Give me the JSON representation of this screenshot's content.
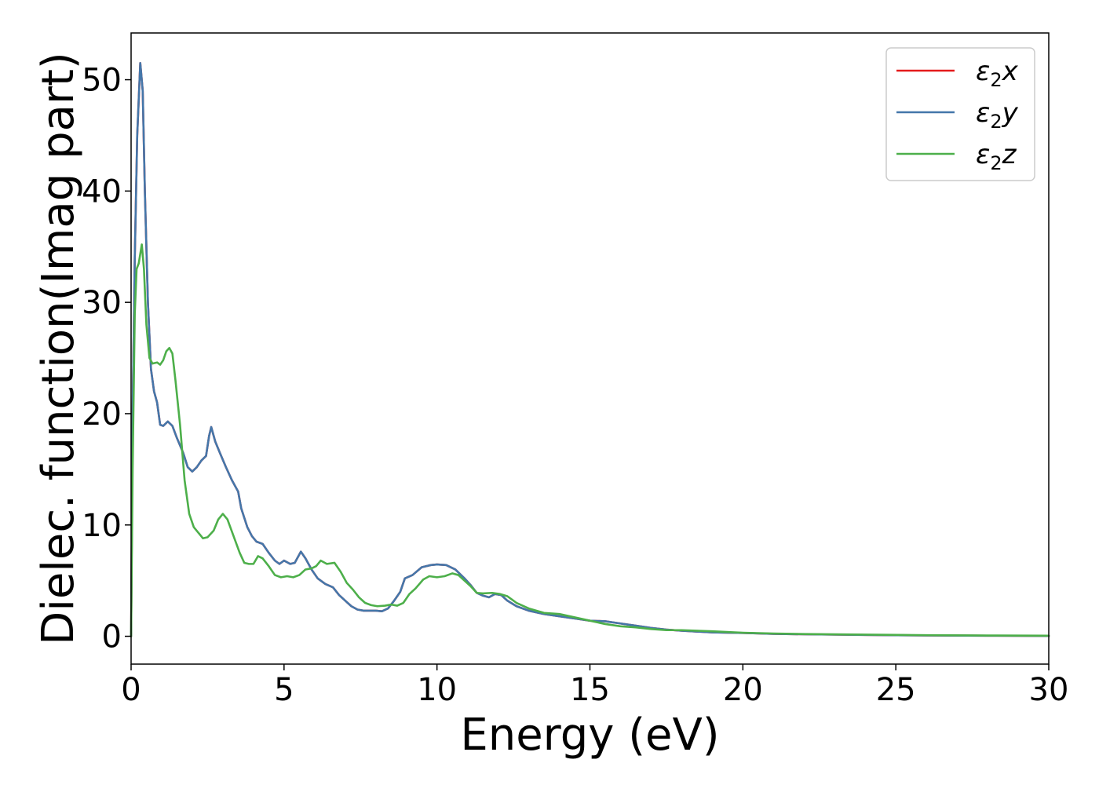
{
  "chart_data": {
    "type": "line",
    "title": "",
    "xlabel": "Energy (eV)",
    "ylabel": "Dielec. function(Imag part)",
    "xlim": [
      0,
      30
    ],
    "ylim": [
      -2.5,
      54.2
    ],
    "xticks": [
      0,
      5,
      10,
      15,
      20,
      25,
      30
    ],
    "yticks": [
      0,
      10,
      20,
      30,
      40,
      50
    ],
    "grid": false,
    "legend_position": "top-right",
    "series": [
      {
        "name": "ε2x",
        "legend_base": "ε",
        "legend_sub": "2",
        "legend_tail": "x",
        "color": "#e41a1c",
        "points": [
          [
            0,
            0
          ],
          [
            0.05,
            20
          ],
          [
            0.12,
            34
          ],
          [
            0.2,
            45
          ],
          [
            0.3,
            51.5
          ],
          [
            0.38,
            49
          ],
          [
            0.45,
            40
          ],
          [
            0.55,
            30
          ],
          [
            0.65,
            24
          ],
          [
            0.75,
            22
          ],
          [
            0.85,
            21
          ],
          [
            0.95,
            19
          ],
          [
            1.05,
            18.9
          ],
          [
            1.2,
            19.3
          ],
          [
            1.35,
            18.9
          ],
          [
            1.5,
            17.8
          ],
          [
            1.7,
            16.5
          ],
          [
            1.85,
            15.2
          ],
          [
            2.0,
            14.8
          ],
          [
            2.15,
            15.2
          ],
          [
            2.3,
            15.8
          ],
          [
            2.45,
            16.2
          ],
          [
            2.55,
            18
          ],
          [
            2.62,
            18.8
          ],
          [
            2.75,
            17.5
          ],
          [
            2.9,
            16.5
          ],
          [
            3.1,
            15.2
          ],
          [
            3.3,
            14
          ],
          [
            3.5,
            13
          ],
          [
            3.6,
            11.5
          ],
          [
            3.8,
            9.8
          ],
          [
            3.95,
            9
          ],
          [
            4.1,
            8.5
          ],
          [
            4.3,
            8.3
          ],
          [
            4.5,
            7.5
          ],
          [
            4.7,
            6.8
          ],
          [
            4.85,
            6.5
          ],
          [
            5.0,
            6.8
          ],
          [
            5.2,
            6.5
          ],
          [
            5.35,
            6.6
          ],
          [
            5.55,
            7.6
          ],
          [
            5.7,
            7
          ],
          [
            5.9,
            6
          ],
          [
            6.1,
            5.2
          ],
          [
            6.35,
            4.7
          ],
          [
            6.6,
            4.4
          ],
          [
            6.8,
            3.7
          ],
          [
            7.0,
            3.2
          ],
          [
            7.2,
            2.7
          ],
          [
            7.4,
            2.4
          ],
          [
            7.6,
            2.3
          ],
          [
            7.8,
            2.3
          ],
          [
            8.0,
            2.3
          ],
          [
            8.2,
            2.25
          ],
          [
            8.4,
            2.5
          ],
          [
            8.6,
            3.2
          ],
          [
            8.8,
            4
          ],
          [
            8.95,
            5.2
          ],
          [
            9.2,
            5.5
          ],
          [
            9.5,
            6.2
          ],
          [
            9.8,
            6.4
          ],
          [
            10.0,
            6.45
          ],
          [
            10.3,
            6.4
          ],
          [
            10.6,
            6
          ],
          [
            10.9,
            5.2
          ],
          [
            11.1,
            4.6
          ],
          [
            11.3,
            3.9
          ],
          [
            11.5,
            3.65
          ],
          [
            11.7,
            3.5
          ],
          [
            11.9,
            3.8
          ],
          [
            12.1,
            3.7
          ],
          [
            12.3,
            3.2
          ],
          [
            12.6,
            2.7
          ],
          [
            13.0,
            2.3
          ],
          [
            13.5,
            2
          ],
          [
            14.0,
            1.8
          ],
          [
            14.5,
            1.6
          ],
          [
            15.0,
            1.4
          ],
          [
            15.5,
            1.35
          ],
          [
            16.0,
            1.15
          ],
          [
            16.5,
            0.95
          ],
          [
            17.0,
            0.75
          ],
          [
            17.5,
            0.6
          ],
          [
            18.0,
            0.5
          ],
          [
            19.0,
            0.35
          ],
          [
            20.0,
            0.3
          ],
          [
            21.0,
            0.22
          ],
          [
            22.0,
            0.18
          ],
          [
            24.0,
            0.12
          ],
          [
            26.0,
            0.08
          ],
          [
            28.0,
            0.05
          ],
          [
            30.0,
            0.03
          ]
        ]
      },
      {
        "name": "ε2y",
        "legend_base": "ε",
        "legend_sub": "2",
        "legend_tail": "y",
        "color": "#4477aa",
        "points": [
          [
            0,
            0
          ],
          [
            0.05,
            20
          ],
          [
            0.12,
            34
          ],
          [
            0.2,
            45
          ],
          [
            0.3,
            51.5
          ],
          [
            0.38,
            49
          ],
          [
            0.45,
            40
          ],
          [
            0.55,
            30
          ],
          [
            0.65,
            24
          ],
          [
            0.75,
            22
          ],
          [
            0.85,
            21
          ],
          [
            0.95,
            19
          ],
          [
            1.05,
            18.9
          ],
          [
            1.2,
            19.3
          ],
          [
            1.35,
            18.9
          ],
          [
            1.5,
            17.8
          ],
          [
            1.7,
            16.5
          ],
          [
            1.85,
            15.2
          ],
          [
            2.0,
            14.8
          ],
          [
            2.15,
            15.2
          ],
          [
            2.3,
            15.8
          ],
          [
            2.45,
            16.2
          ],
          [
            2.55,
            18
          ],
          [
            2.62,
            18.8
          ],
          [
            2.75,
            17.5
          ],
          [
            2.9,
            16.5
          ],
          [
            3.1,
            15.2
          ],
          [
            3.3,
            14
          ],
          [
            3.5,
            13
          ],
          [
            3.6,
            11.5
          ],
          [
            3.8,
            9.8
          ],
          [
            3.95,
            9
          ],
          [
            4.1,
            8.5
          ],
          [
            4.3,
            8.3
          ],
          [
            4.5,
            7.5
          ],
          [
            4.7,
            6.8
          ],
          [
            4.85,
            6.5
          ],
          [
            5.0,
            6.8
          ],
          [
            5.2,
            6.5
          ],
          [
            5.35,
            6.6
          ],
          [
            5.55,
            7.6
          ],
          [
            5.7,
            7
          ],
          [
            5.9,
            6
          ],
          [
            6.1,
            5.2
          ],
          [
            6.35,
            4.7
          ],
          [
            6.6,
            4.4
          ],
          [
            6.8,
            3.7
          ],
          [
            7.0,
            3.2
          ],
          [
            7.2,
            2.7
          ],
          [
            7.4,
            2.4
          ],
          [
            7.6,
            2.3
          ],
          [
            7.8,
            2.3
          ],
          [
            8.0,
            2.3
          ],
          [
            8.2,
            2.25
          ],
          [
            8.4,
            2.5
          ],
          [
            8.6,
            3.2
          ],
          [
            8.8,
            4
          ],
          [
            8.95,
            5.2
          ],
          [
            9.2,
            5.5
          ],
          [
            9.5,
            6.2
          ],
          [
            9.8,
            6.4
          ],
          [
            10.0,
            6.45
          ],
          [
            10.3,
            6.4
          ],
          [
            10.6,
            6
          ],
          [
            10.9,
            5.2
          ],
          [
            11.1,
            4.6
          ],
          [
            11.3,
            3.9
          ],
          [
            11.5,
            3.65
          ],
          [
            11.7,
            3.5
          ],
          [
            11.9,
            3.8
          ],
          [
            12.1,
            3.7
          ],
          [
            12.3,
            3.2
          ],
          [
            12.6,
            2.7
          ],
          [
            13.0,
            2.3
          ],
          [
            13.5,
            2
          ],
          [
            14.0,
            1.8
          ],
          [
            14.5,
            1.6
          ],
          [
            15.0,
            1.4
          ],
          [
            15.5,
            1.35
          ],
          [
            16.0,
            1.15
          ],
          [
            16.5,
            0.95
          ],
          [
            17.0,
            0.75
          ],
          [
            17.5,
            0.6
          ],
          [
            18.0,
            0.5
          ],
          [
            19.0,
            0.35
          ],
          [
            20.0,
            0.3
          ],
          [
            21.0,
            0.22
          ],
          [
            22.0,
            0.18
          ],
          [
            24.0,
            0.12
          ],
          [
            26.0,
            0.08
          ],
          [
            28.0,
            0.05
          ],
          [
            30.0,
            0.03
          ]
        ]
      },
      {
        "name": "ε2z",
        "legend_base": "ε",
        "legend_sub": "2",
        "legend_tail": "z",
        "color": "#4daf4a",
        "points": [
          [
            0,
            0
          ],
          [
            0.05,
            15
          ],
          [
            0.12,
            29
          ],
          [
            0.18,
            33
          ],
          [
            0.25,
            33.5
          ],
          [
            0.35,
            35.2
          ],
          [
            0.42,
            33
          ],
          [
            0.5,
            28
          ],
          [
            0.6,
            25
          ],
          [
            0.7,
            24.5
          ],
          [
            0.85,
            24.6
          ],
          [
            0.95,
            24.4
          ],
          [
            1.05,
            24.8
          ],
          [
            1.15,
            25.6
          ],
          [
            1.25,
            25.9
          ],
          [
            1.35,
            25.4
          ],
          [
            1.45,
            23
          ],
          [
            1.6,
            19
          ],
          [
            1.75,
            14
          ],
          [
            1.9,
            11
          ],
          [
            2.05,
            9.8
          ],
          [
            2.2,
            9.3
          ],
          [
            2.35,
            8.8
          ],
          [
            2.5,
            8.9
          ],
          [
            2.7,
            9.5
          ],
          [
            2.85,
            10.5
          ],
          [
            3.0,
            11
          ],
          [
            3.15,
            10.5
          ],
          [
            3.35,
            9
          ],
          [
            3.55,
            7.5
          ],
          [
            3.7,
            6.6
          ],
          [
            3.85,
            6.5
          ],
          [
            4.0,
            6.5
          ],
          [
            4.15,
            7.2
          ],
          [
            4.3,
            7
          ],
          [
            4.5,
            6.3
          ],
          [
            4.7,
            5.5
          ],
          [
            4.9,
            5.3
          ],
          [
            5.1,
            5.4
          ],
          [
            5.3,
            5.3
          ],
          [
            5.5,
            5.5
          ],
          [
            5.7,
            6
          ],
          [
            5.9,
            6.1
          ],
          [
            6.05,
            6.3
          ],
          [
            6.2,
            6.8
          ],
          [
            6.4,
            6.5
          ],
          [
            6.65,
            6.6
          ],
          [
            6.85,
            5.8
          ],
          [
            7.05,
            4.8
          ],
          [
            7.25,
            4.2
          ],
          [
            7.45,
            3.5
          ],
          [
            7.65,
            3
          ],
          [
            7.85,
            2.8
          ],
          [
            8.05,
            2.7
          ],
          [
            8.3,
            2.75
          ],
          [
            8.5,
            2.85
          ],
          [
            8.7,
            2.75
          ],
          [
            8.9,
            3
          ],
          [
            9.1,
            3.8
          ],
          [
            9.3,
            4.3
          ],
          [
            9.55,
            5.1
          ],
          [
            9.75,
            5.4
          ],
          [
            10.0,
            5.3
          ],
          [
            10.25,
            5.4
          ],
          [
            10.5,
            5.65
          ],
          [
            10.7,
            5.5
          ],
          [
            10.9,
            5
          ],
          [
            11.1,
            4.5
          ],
          [
            11.3,
            3.9
          ],
          [
            11.5,
            3.85
          ],
          [
            11.8,
            3.9
          ],
          [
            12.05,
            3.8
          ],
          [
            12.3,
            3.6
          ],
          [
            12.6,
            3
          ],
          [
            13.0,
            2.5
          ],
          [
            13.5,
            2.1
          ],
          [
            14.0,
            2
          ],
          [
            14.5,
            1.7
          ],
          [
            15.0,
            1.4
          ],
          [
            15.5,
            1.1
          ],
          [
            16.0,
            0.9
          ],
          [
            16.5,
            0.8
          ],
          [
            17.0,
            0.65
          ],
          [
            17.5,
            0.55
          ],
          [
            18.0,
            0.55
          ],
          [
            19.0,
            0.45
          ],
          [
            20.0,
            0.32
          ],
          [
            21.0,
            0.25
          ],
          [
            22.0,
            0.2
          ],
          [
            24.0,
            0.15
          ],
          [
            26.0,
            0.1
          ],
          [
            28.0,
            0.07
          ],
          [
            30.0,
            0.05
          ]
        ]
      }
    ]
  }
}
